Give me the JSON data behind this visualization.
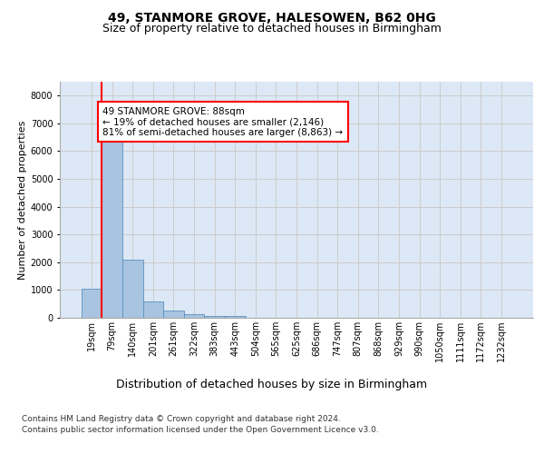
{
  "title": "49, STANMORE GROVE, HALESOWEN, B62 0HG",
  "subtitle": "Size of property relative to detached houses in Birmingham",
  "xlabel": "Distribution of detached houses by size in Birmingham",
  "ylabel": "Number of detached properties",
  "footer_line1": "Contains HM Land Registry data © Crown copyright and database right 2024.",
  "footer_line2": "Contains public sector information licensed under the Open Government Licence v3.0.",
  "bar_categories": [
    "19sqm",
    "79sqm",
    "140sqm",
    "201sqm",
    "261sqm",
    "322sqm",
    "383sqm",
    "443sqm",
    "504sqm",
    "565sqm",
    "625sqm",
    "686sqm",
    "747sqm",
    "807sqm",
    "868sqm",
    "929sqm",
    "990sqm",
    "1050sqm",
    "1111sqm",
    "1172sqm",
    "1232sqm"
  ],
  "bar_values": [
    1050,
    6700,
    2100,
    600,
    250,
    130,
    70,
    50,
    10,
    0,
    0,
    0,
    0,
    0,
    0,
    0,
    0,
    0,
    0,
    0,
    0
  ],
  "bar_color": "#a8c4e0",
  "bar_edgecolor": "#5a8fbf",
  "annotation_text": "49 STANMORE GROVE: 88sqm\n← 19% of detached houses are smaller (2,146)\n81% of semi-detached houses are larger (8,863) →",
  "annotation_box_edgecolor": "red",
  "annotation_box_facecolor": "white",
  "red_line_color": "red",
  "red_line_x": 0.5,
  "ylim": [
    0,
    8500
  ],
  "yticks": [
    0,
    1000,
    2000,
    3000,
    4000,
    5000,
    6000,
    7000,
    8000
  ],
  "grid_color": "#cccccc",
  "background_color": "#dce8f5",
  "figure_background": "white",
  "title_fontsize": 10,
  "subtitle_fontsize": 9,
  "xlabel_fontsize": 9,
  "ylabel_fontsize": 8,
  "tick_fontsize": 7,
  "annotation_fontsize": 7.5,
  "footer_fontsize": 6.5
}
